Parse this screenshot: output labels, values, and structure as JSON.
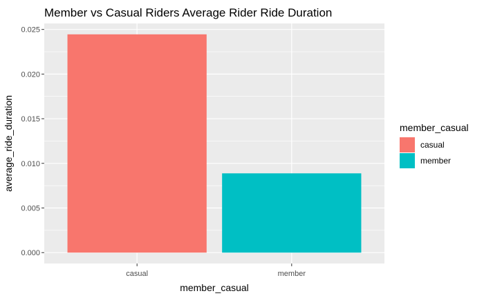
{
  "chart_data": {
    "type": "bar",
    "title": "Member vs Casual Riders Average Rider Ride Duration",
    "xlabel": "member_casual",
    "ylabel": "average_ride_duration",
    "categories": [
      "casual",
      "member"
    ],
    "values": [
      0.02445,
      0.00888
    ],
    "colors": [
      "#F8766D",
      "#00BFC4"
    ],
    "ylim": [
      -0.00122,
      0.02567
    ],
    "yticks": [
      0.0,
      0.005,
      0.01,
      0.015,
      0.02,
      0.025
    ],
    "ytick_labels": [
      "0.000",
      "0.005",
      "0.010",
      "0.015",
      "0.020",
      "0.025"
    ],
    "grid": true,
    "panel_background": "#EBEBEB",
    "grid_color": "#FFFFFF",
    "legend": {
      "title": "member_casual",
      "position": "right",
      "entries": [
        "casual",
        "member"
      ]
    }
  }
}
